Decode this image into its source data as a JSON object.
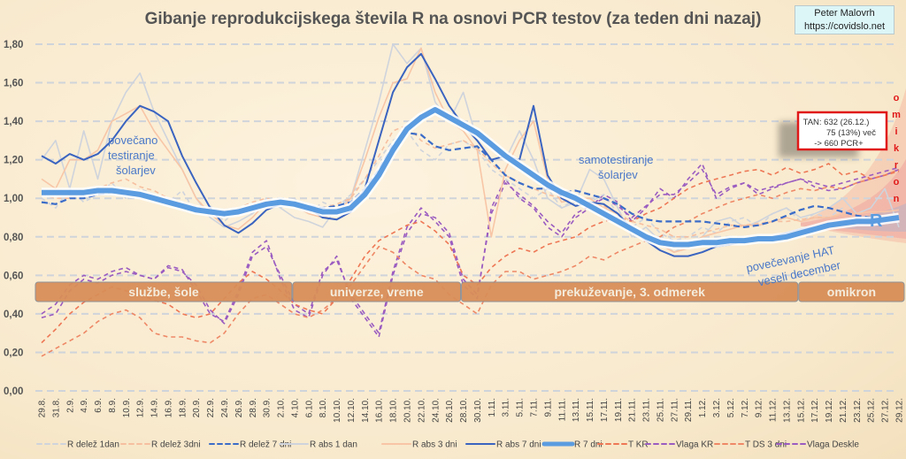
{
  "chart_data": {
    "type": "line",
    "title": "Gibanje reprodukcijskega števila R na osnovi PCR testov (za teden dni nazaj)",
    "author": {
      "name": "Peter Malovrh",
      "site": "https://covidslo.net"
    },
    "xlabel": "",
    "ylabel": "",
    "ylim": [
      0,
      1.8
    ],
    "yticks": [
      "0,00",
      "0,20",
      "0,40",
      "0,60",
      "0,80",
      "1,00",
      "1,20",
      "1,40",
      "1,60",
      "1,80"
    ],
    "yticks_values": [
      0,
      0.2,
      0.4,
      0.6,
      0.8,
      1.0,
      1.2,
      1.4,
      1.6,
      1.8
    ],
    "grid": true,
    "legend_position": "bottom",
    "x": [
      "29.8.",
      "31.8.",
      "2.9.",
      "4.9.",
      "6.9.",
      "8.9.",
      "10.9.",
      "12.9.",
      "14.9.",
      "16.9.",
      "18.9.",
      "20.9.",
      "22.9.",
      "24.9.",
      "26.9.",
      "28.9.",
      "30.9.",
      "2.10.",
      "4.10.",
      "6.10.",
      "8.10.",
      "10.10.",
      "12.10.",
      "14.10.",
      "16.10.",
      "18.10.",
      "20.10.",
      "22.10.",
      "24.10.",
      "26.10.",
      "28.10.",
      "30.10.",
      "1.11.",
      "3.11.",
      "5.11.",
      "7.11.",
      "9.11.",
      "11.11.",
      "13.11.",
      "15.11.",
      "17.11.",
      "19.11.",
      "21.11.",
      "23.11.",
      "25.11.",
      "27.11.",
      "29.11.",
      "1.12.",
      "3.12.",
      "5.12.",
      "7.12.",
      "9.12.",
      "11.12.",
      "13.12.",
      "15.12.",
      "17.12.",
      "19.12.",
      "21.12.",
      "23.12.",
      "25.12.",
      "27.12.",
      "29.12."
    ],
    "series": [
      {
        "name": "R delež 1dan",
        "style": "dashed",
        "color": "#cfd4dc",
        "values": [
          1.0,
          0.95,
          1.05,
          0.98,
          1.02,
          1.08,
          1.0,
          1.05,
          1.02,
          0.98,
          1.04,
          0.92,
          0.96,
          0.88,
          0.95,
          0.92,
          1.0,
          0.95,
          1.0,
          0.92,
          0.98,
          0.95,
          1.02,
          1.1,
          1.2,
          1.3,
          1.35,
          1.25,
          1.2,
          1.28,
          1.3,
          1.25,
          1.15,
          1.1,
          1.05,
          1.0,
          1.05,
          0.95,
          1.0,
          0.98,
          1.02,
          0.92,
          0.85,
          0.9,
          0.82,
          0.78,
          0.8,
          0.85,
          0.82,
          0.88,
          0.9,
          0.85,
          0.92,
          0.95,
          0.88,
          0.92,
          0.9,
          0.95,
          0.88,
          0.92,
          0.9,
          0.92
        ]
      },
      {
        "name": "R delež 3dni",
        "style": "dashed",
        "color": "#f6c0a0",
        "values": [
          1.02,
          1.0,
          1.0,
          1.02,
          1.05,
          1.08,
          1.1,
          1.06,
          1.04,
          1.0,
          0.98,
          0.96,
          0.94,
          0.92,
          0.95,
          0.98,
          1.0,
          0.98,
          0.97,
          0.96,
          0.95,
          0.97,
          1.0,
          1.1,
          1.22,
          1.35,
          1.38,
          1.3,
          1.26,
          1.28,
          1.3,
          1.26,
          1.18,
          1.12,
          1.08,
          1.05,
          1.02,
          1.0,
          0.98,
          0.96,
          0.96,
          0.92,
          0.88,
          0.86,
          0.84,
          0.8,
          0.8,
          0.82,
          0.84,
          0.86,
          0.86,
          0.87,
          0.88,
          0.88,
          0.89,
          0.9,
          0.9,
          0.91,
          0.9,
          0.91,
          0.91,
          0.92
        ]
      },
      {
        "name": "R delež 7 dni",
        "style": "dashed",
        "color": "#3a6cc8",
        "values": [
          0.98,
          0.97,
          1.0,
          1.0,
          1.02,
          1.03,
          1.02,
          1.01,
          1.0,
          0.98,
          0.97,
          0.95,
          0.94,
          0.93,
          0.93,
          0.94,
          0.96,
          0.97,
          0.97,
          0.96,
          0.95,
          0.96,
          0.98,
          1.05,
          1.15,
          1.28,
          1.34,
          1.33,
          1.27,
          1.25,
          1.26,
          1.27,
          1.2,
          1.12,
          1.08,
          1.05,
          1.05,
          1.03,
          1.04,
          1.02,
          1.0,
          0.97,
          0.92,
          0.89,
          0.88,
          0.88,
          0.88,
          0.88,
          0.87,
          0.86,
          0.85,
          0.86,
          0.88,
          0.91,
          0.94,
          0.96,
          0.95,
          0.93,
          0.91,
          0.9,
          0.89,
          0.89
        ]
      },
      {
        "name": "R abs 1 dan",
        "style": "solid",
        "color": "#cfd4dc",
        "values": [
          1.2,
          1.3,
          1.05,
          1.35,
          1.1,
          1.4,
          1.55,
          1.65,
          1.45,
          1.3,
          1.15,
          1.0,
          0.9,
          0.85,
          0.88,
          0.92,
          1.0,
          0.95,
          0.9,
          0.88,
          0.85,
          0.95,
          1.0,
          1.25,
          1.5,
          1.8,
          1.7,
          1.78,
          1.5,
          1.4,
          1.55,
          1.3,
          1.2,
          1.2,
          1.35,
          1.2,
          1.0,
          0.95,
          0.98,
          1.15,
          1.1,
          0.95,
          0.8,
          0.85,
          0.78,
          0.72,
          0.76,
          0.8,
          0.88,
          0.9,
          0.85,
          0.88,
          0.92,
          0.95,
          0.9,
          0.92,
          0.95,
          1.0,
          0.92,
          0.95,
          1.05,
          0.85
        ]
      },
      {
        "name": "R abs 3 dni",
        "style": "solid",
        "color": "#f8c6a6",
        "values": [
          1.1,
          1.05,
          1.2,
          1.2,
          1.25,
          1.4,
          1.44,
          1.48,
          1.35,
          1.25,
          1.15,
          1.0,
          0.92,
          0.86,
          0.84,
          0.9,
          0.98,
          0.98,
          0.96,
          0.92,
          0.9,
          0.92,
          1.0,
          1.2,
          1.42,
          1.6,
          1.62,
          1.78,
          1.55,
          1.4,
          1.35,
          1.25,
          0.8,
          1.15,
          1.3,
          1.4,
          1.1,
          0.98,
          1.0,
          1.0,
          0.95,
          0.92,
          0.85,
          0.8,
          0.76,
          0.72,
          0.74,
          0.8,
          0.82,
          0.84,
          0.86,
          0.86,
          0.88,
          0.9,
          0.88,
          0.9,
          0.9,
          0.92,
          0.92,
          0.93,
          0.93,
          0.94
        ]
      },
      {
        "name": "R abs 7 dni",
        "style": "solid",
        "color": "#3a64c0",
        "values": [
          1.22,
          1.18,
          1.23,
          1.2,
          1.23,
          1.3,
          1.4,
          1.48,
          1.45,
          1.4,
          1.22,
          1.08,
          0.95,
          0.86,
          0.82,
          0.87,
          0.94,
          0.97,
          0.98,
          0.95,
          0.9,
          0.89,
          0.93,
          1.05,
          1.3,
          1.55,
          1.68,
          1.75,
          1.62,
          1.48,
          1.38,
          1.3,
          1.2,
          1.22,
          1.2,
          1.48,
          1.12,
          1.0,
          0.96,
          0.98,
          0.97,
          0.92,
          0.84,
          0.78,
          0.73,
          0.7,
          0.7,
          0.72,
          0.75,
          0.76,
          0.78,
          0.79,
          0.8,
          0.82,
          0.84,
          0.85,
          0.86,
          0.87,
          0.87,
          0.88,
          0.88,
          0.89
        ]
      },
      {
        "name": "R 7 dni",
        "style": "thick",
        "color": "#5b9be0",
        "values": [
          1.03,
          1.03,
          1.03,
          1.03,
          1.04,
          1.04,
          1.03,
          1.02,
          1.0,
          0.98,
          0.96,
          0.94,
          0.93,
          0.92,
          0.93,
          0.95,
          0.97,
          0.98,
          0.97,
          0.95,
          0.93,
          0.93,
          0.95,
          1.02,
          1.12,
          1.25,
          1.36,
          1.42,
          1.46,
          1.42,
          1.38,
          1.34,
          1.28,
          1.22,
          1.17,
          1.12,
          1.07,
          1.03,
          1.0,
          0.96,
          0.92,
          0.88,
          0.84,
          0.8,
          0.77,
          0.76,
          0.76,
          0.77,
          0.77,
          0.78,
          0.78,
          0.79,
          0.79,
          0.8,
          0.82,
          0.84,
          0.86,
          0.87,
          0.88,
          0.88,
          0.89,
          0.9
        ]
      },
      {
        "name": "T KR",
        "style": "dashed",
        "color": "#ee7755",
        "values": [
          0.25,
          0.32,
          0.4,
          0.46,
          0.5,
          0.54,
          0.52,
          0.5,
          0.47,
          0.45,
          0.4,
          0.38,
          0.4,
          0.48,
          0.56,
          0.62,
          0.58,
          0.52,
          0.45,
          0.42,
          0.4,
          0.48,
          0.58,
          0.7,
          0.78,
          0.82,
          0.86,
          0.88,
          0.83,
          0.76,
          0.6,
          0.55,
          0.64,
          0.7,
          0.74,
          0.72,
          0.76,
          0.78,
          0.8,
          0.85,
          0.88,
          0.9,
          0.88,
          0.92,
          0.95,
          1.0,
          1.05,
          1.08,
          1.1,
          1.12,
          1.14,
          1.15,
          1.12,
          1.16,
          1.13,
          1.15,
          1.18,
          1.12,
          1.14,
          1.1,
          1.12,
          1.14
        ]
      },
      {
        "name": "Vlaga KR",
        "style": "dashed",
        "color": "#9a5cc0",
        "values": [
          0.38,
          0.4,
          0.52,
          0.58,
          0.56,
          0.6,
          0.62,
          0.6,
          0.58,
          0.64,
          0.62,
          0.55,
          0.42,
          0.35,
          0.5,
          0.7,
          0.75,
          0.6,
          0.45,
          0.4,
          0.62,
          0.68,
          0.5,
          0.4,
          0.3,
          0.62,
          0.85,
          0.95,
          0.88,
          0.8,
          0.55,
          0.48,
          0.95,
          1.1,
          1.0,
          0.95,
          0.85,
          0.8,
          0.9,
          0.95,
          1.02,
          0.98,
          0.88,
          0.95,
          1.05,
          1.0,
          1.1,
          1.18,
          1.0,
          1.05,
          1.08,
          1.02,
          1.05,
          1.08,
          1.1,
          1.06,
          1.04,
          1.05,
          1.08,
          1.1,
          1.12,
          1.15
        ]
      },
      {
        "name": "T DS 3 dni",
        "style": "dashed",
        "color": "#ee8866",
        "values": [
          0.18,
          0.22,
          0.26,
          0.3,
          0.36,
          0.4,
          0.42,
          0.38,
          0.3,
          0.28,
          0.28,
          0.26,
          0.25,
          0.3,
          0.4,
          0.48,
          0.5,
          0.45,
          0.4,
          0.38,
          0.42,
          0.48,
          0.55,
          0.65,
          0.75,
          0.72,
          0.65,
          0.6,
          0.58,
          0.5,
          0.45,
          0.4,
          0.55,
          0.62,
          0.62,
          0.58,
          0.6,
          0.62,
          0.65,
          0.7,
          0.68,
          0.72,
          0.75,
          0.78,
          0.8,
          0.85,
          0.88,
          0.92,
          0.95,
          0.98,
          1.0,
          1.02,
          1.0,
          1.03,
          1.05,
          1.04,
          1.06,
          1.05,
          1.08,
          1.1,
          1.12,
          1.15
        ]
      },
      {
        "name": "Vlaga Deskle",
        "style": "dashed",
        "color": "#9a5cc0",
        "values": [
          0.4,
          0.45,
          0.55,
          0.6,
          0.58,
          0.62,
          0.64,
          0.6,
          0.58,
          0.65,
          0.63,
          0.52,
          0.4,
          0.36,
          0.52,
          0.72,
          0.78,
          0.58,
          0.42,
          0.38,
          0.6,
          0.7,
          0.48,
          0.38,
          0.28,
          0.6,
          0.82,
          0.92,
          0.9,
          0.82,
          0.58,
          0.5,
          0.92,
          1.08,
          1.02,
          0.96,
          0.88,
          0.82,
          0.92,
          0.96,
          1.0,
          0.96,
          0.9,
          0.96,
          1.02,
          1.02,
          1.08,
          1.15,
          1.02,
          1.06,
          1.08,
          1.04,
          1.06,
          1.08,
          1.1,
          1.08,
          1.06,
          1.08,
          1.1,
          1.12,
          1.14,
          1.16
        ]
      }
    ],
    "phases": [
      {
        "label": "službe, šole",
        "from": "29.8.",
        "to": "4.10."
      },
      {
        "label": "univerze, vreme",
        "from": "4.10.",
        "to": "28.10."
      },
      {
        "label": "prekuževanje, 3. odmerek",
        "from": "28.10.",
        "to": "15.12."
      },
      {
        "label": "omikron",
        "from": "15.12.",
        "to": "29.12."
      }
    ],
    "annotations": {
      "note1": [
        "povečano",
        "testiranje",
        "šolarjev"
      ],
      "note2": [
        "samotestiranje",
        "šolarjev"
      ],
      "note3": [
        "povečevanje HAT",
        "veseli december"
      ],
      "r_label": "R",
      "omikron_vertical": [
        "o",
        "m",
        "i",
        "k",
        "r",
        "o",
        "n"
      ],
      "tan_box": [
        "TAN:  632 (26.12.)",
        "75 (13%) več",
        "-> 660 PCR+"
      ]
    }
  }
}
